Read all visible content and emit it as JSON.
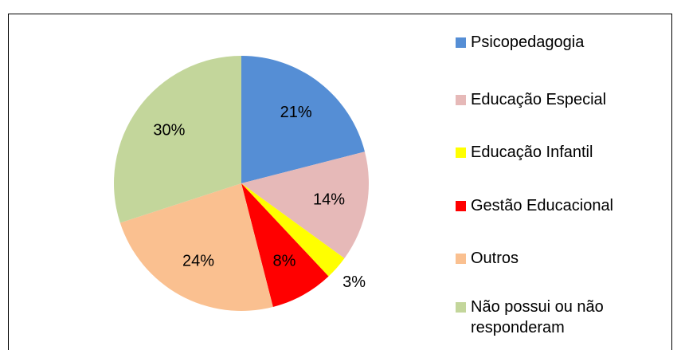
{
  "chart_data": {
    "type": "pie",
    "categories": [
      "Psicopedagogia",
      "Educação Especial",
      "Educação Infantil",
      "Gestão Educacional",
      "Outros",
      "Não possui ou não responderam"
    ],
    "values": [
      21,
      14,
      3,
      8,
      24,
      30
    ],
    "value_labels": [
      "21%",
      "14%",
      "3%",
      "8%",
      "24%",
      "30%"
    ],
    "colors": [
      "#558ed5",
      "#e6b9b8",
      "#ffff00",
      "#ff0000",
      "#fac090",
      "#c3d69b"
    ],
    "legend": "right"
  }
}
